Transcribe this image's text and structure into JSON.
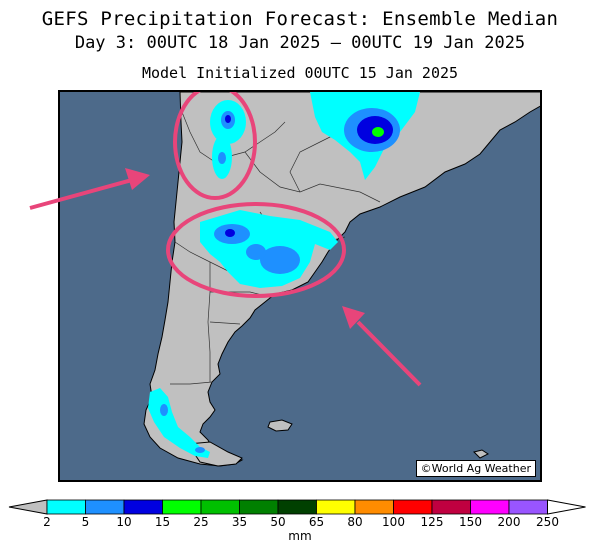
{
  "title": {
    "line1": "GEFS Precipitation Forecast: Ensemble Median",
    "line2": "Day 3: 00UTC 18 Jan 2025 — 00UTC 19 Jan 2025",
    "line3": "Model Initialized 00UTC 15 Jan 2025"
  },
  "map": {
    "region": "southern South America",
    "credit": "©World Ag Weather",
    "colors": {
      "ocean": "#4d6a8a",
      "land": "#c0c0c0"
    }
  },
  "colorbar": {
    "unit": "mm",
    "ticks": [
      "2",
      "5",
      "10",
      "15",
      "25",
      "35",
      "50",
      "65",
      "80",
      "100",
      "125",
      "150",
      "200",
      "250"
    ],
    "colors": [
      "#00ffff",
      "#1e90ff",
      "#0000e0",
      "#00ff00",
      "#00c000",
      "#008000",
      "#004000",
      "#ffff00",
      "#ff8c00",
      "#ff0000",
      "#c00040",
      "#ff00ff",
      "#9955ff"
    ],
    "under_color": "#c0c0c0",
    "over_color": "#ffffff"
  },
  "annotations": {
    "color": "#e8457a",
    "items": [
      {
        "type": "ellipse",
        "label": "northwest Argentina highlight"
      },
      {
        "type": "ellipse",
        "label": "central Argentina highlight"
      },
      {
        "type": "arrow",
        "label": "arrow from west"
      },
      {
        "type": "arrow",
        "label": "arrow from southeast"
      }
    ]
  }
}
